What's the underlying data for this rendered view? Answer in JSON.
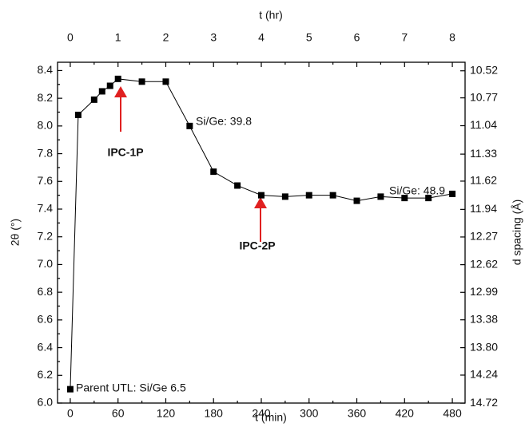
{
  "chart_data": {
    "type": "line",
    "x_label": "t (min)",
    "x2_label": "t (hr)",
    "y_label": "2θ (°)",
    "y2_label": "d spacing (Å)",
    "x": [
      0,
      10,
      30,
      40,
      50,
      60,
      90,
      120,
      150,
      180,
      210,
      240,
      270,
      300,
      330,
      360,
      390,
      420,
      450,
      480
    ],
    "values": [
      6.1,
      8.08,
      8.19,
      8.25,
      8.29,
      8.34,
      8.32,
      8.32,
      8.0,
      7.67,
      7.57,
      7.5,
      7.49,
      7.5,
      7.5,
      7.46,
      7.49,
      7.48,
      7.48,
      7.51
    ],
    "color": "#000000",
    "xlim": [
      -16,
      496
    ],
    "xticks": [
      0,
      60,
      120,
      180,
      240,
      300,
      360,
      420,
      480
    ],
    "x2lim": [
      -0.2667,
      8.2667
    ],
    "x2ticks": [
      0,
      1,
      2,
      3,
      4,
      5,
      6,
      7,
      8
    ],
    "ylim": [
      6.0,
      8.46
    ],
    "yticks": [
      {
        "value": 6.0,
        "label": "6.0"
      },
      6.2,
      6.4,
      6.6,
      6.8,
      {
        "value": 7.0,
        "label": "7.0"
      },
      7.2,
      7.4,
      7.6,
      7.8,
      {
        "value": 8.0,
        "label": "8.0"
      },
      8.2,
      8.4
    ],
    "y2_scale": "bragg",
    "y2ticks": [
      14.72,
      14.24,
      {
        "value": 13.8,
        "label": "13.80"
      },
      13.38,
      12.99,
      12.62,
      12.27,
      11.94,
      11.62,
      11.33,
      11.04,
      10.77,
      10.52
    ],
    "annotations": [
      "Parent UTL: Si/Ge 6.5",
      "Si/Ge: 39.8",
      "Si/Ge: 48.9",
      "IPC-1P",
      "IPC-2P"
    ]
  }
}
